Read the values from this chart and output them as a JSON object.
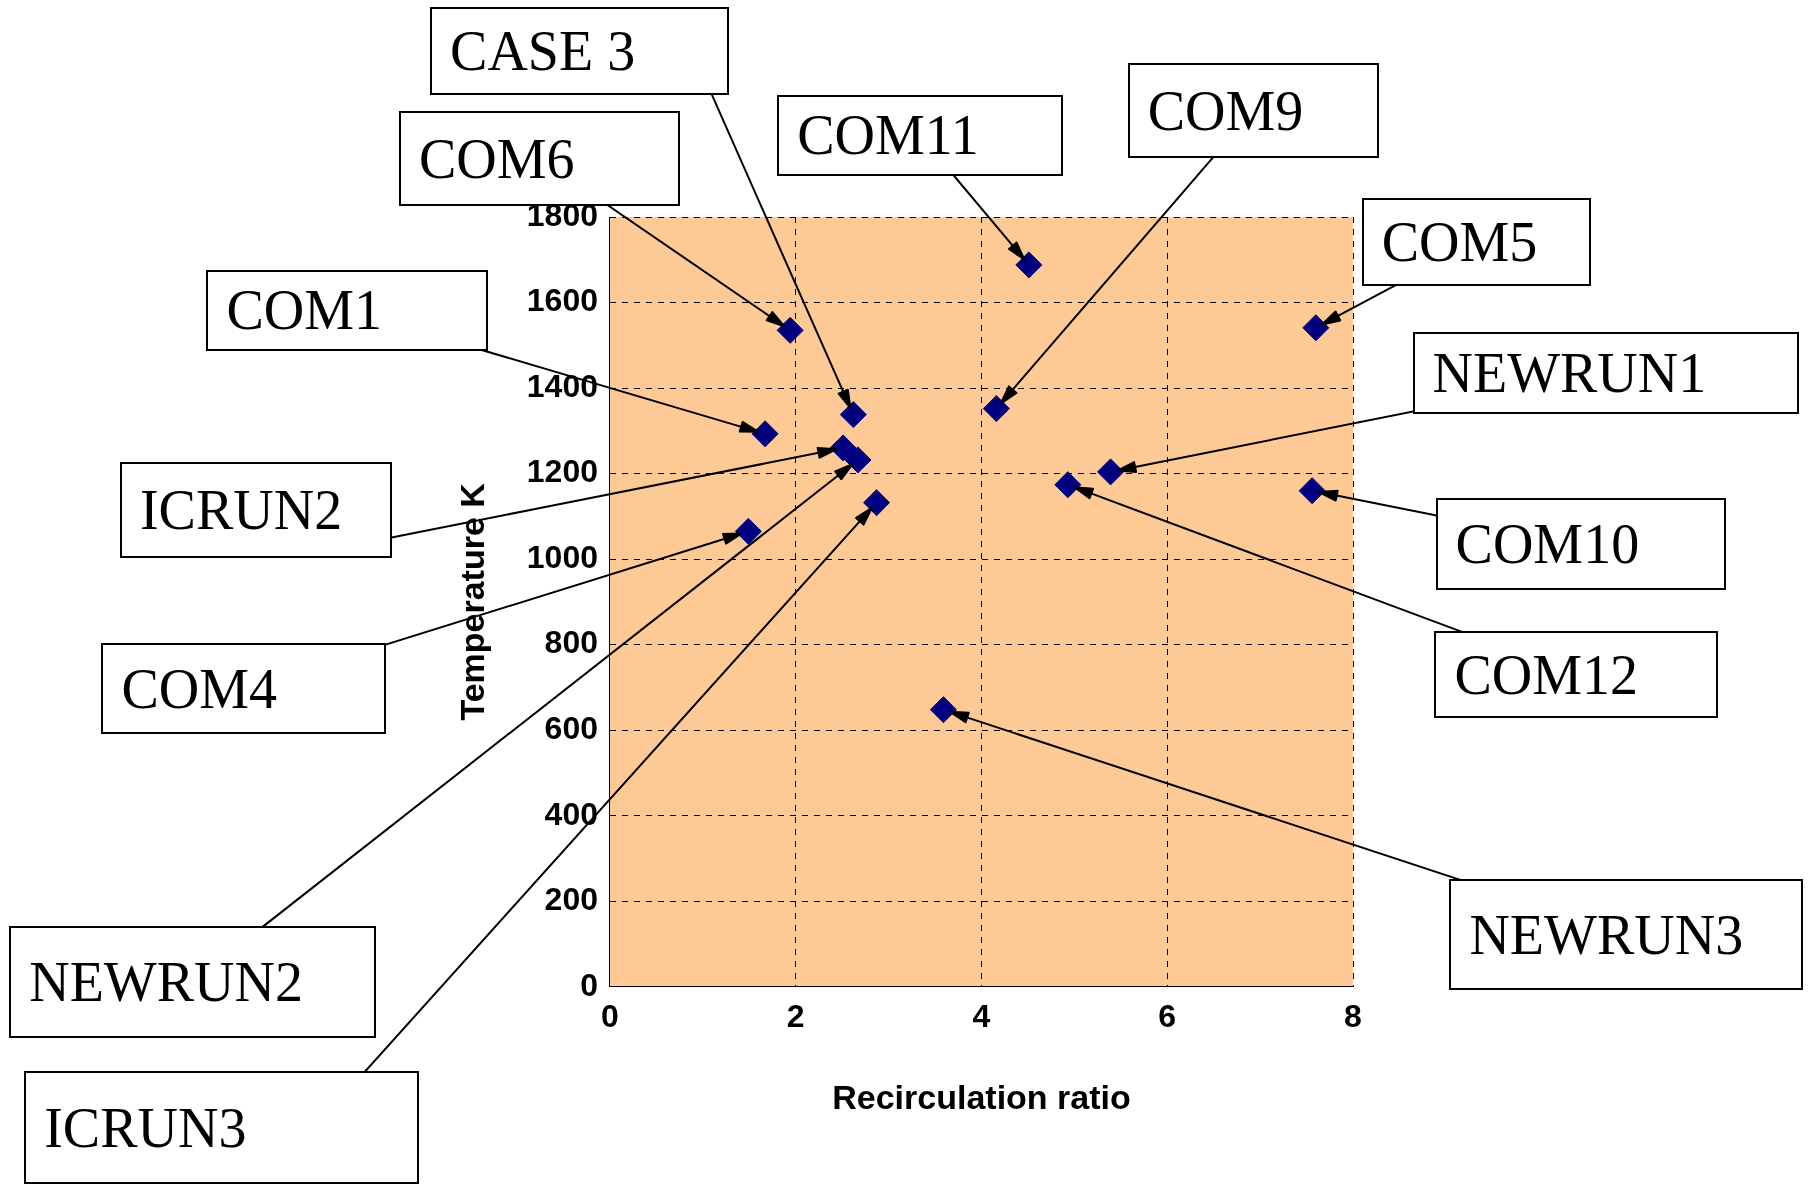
{
  "chart_data": {
    "type": "scatter",
    "xlabel": "Recirculation ratio",
    "ylabel": "Temperature K",
    "x": [
      4.51,
      1.94,
      7.6,
      2.62,
      4.16,
      1.67,
      2.51,
      2.67,
      5.39,
      4.93,
      7.56,
      2.87,
      1.49,
      3.59
    ],
    "values": [
      1688,
      1535,
      1541,
      1338,
      1352,
      1293,
      1260,
      1232,
      1204,
      1174,
      1160,
      1132,
      1065,
      648
    ],
    "color": "#000080",
    "marker": "diamond",
    "grid": true,
    "legend": false,
    "xlim": [
      0,
      8
    ],
    "xticks": [
      0,
      2,
      4,
      6,
      8
    ],
    "ylim": [
      0,
      1800
    ],
    "yticks": [
      0,
      200,
      400,
      600,
      800,
      1000,
      1200,
      1400,
      1600,
      1800
    ],
    "annotations": [
      {
        "text": "COM11",
        "x": 4.51,
        "y": 1688
      },
      {
        "text": "COM6",
        "x": 1.94,
        "y": 1535
      },
      {
        "text": "COM5",
        "x": 7.6,
        "y": 1541
      },
      {
        "text": "CASE 3",
        "x": 2.62,
        "y": 1338
      },
      {
        "text": "COM9",
        "x": 4.16,
        "y": 1352
      },
      {
        "text": "COM1",
        "x": 1.67,
        "y": 1293
      },
      {
        "text": "ICRUN2",
        "x": 2.51,
        "y": 1260
      },
      {
        "text": "NEWRUN2",
        "x": 2.67,
        "y": 1232
      },
      {
        "text": "NEWRUN1",
        "x": 5.39,
        "y": 1204
      },
      {
        "text": "COM12",
        "x": 4.93,
        "y": 1174
      },
      {
        "text": "COM10",
        "x": 7.56,
        "y": 1160
      },
      {
        "text": "ICRUN3",
        "x": 2.87,
        "y": 1132
      },
      {
        "text": "COM4",
        "x": 1.49,
        "y": 1065
      },
      {
        "text": "NEWRUN3",
        "x": 3.59,
        "y": 648
      }
    ]
  }
}
